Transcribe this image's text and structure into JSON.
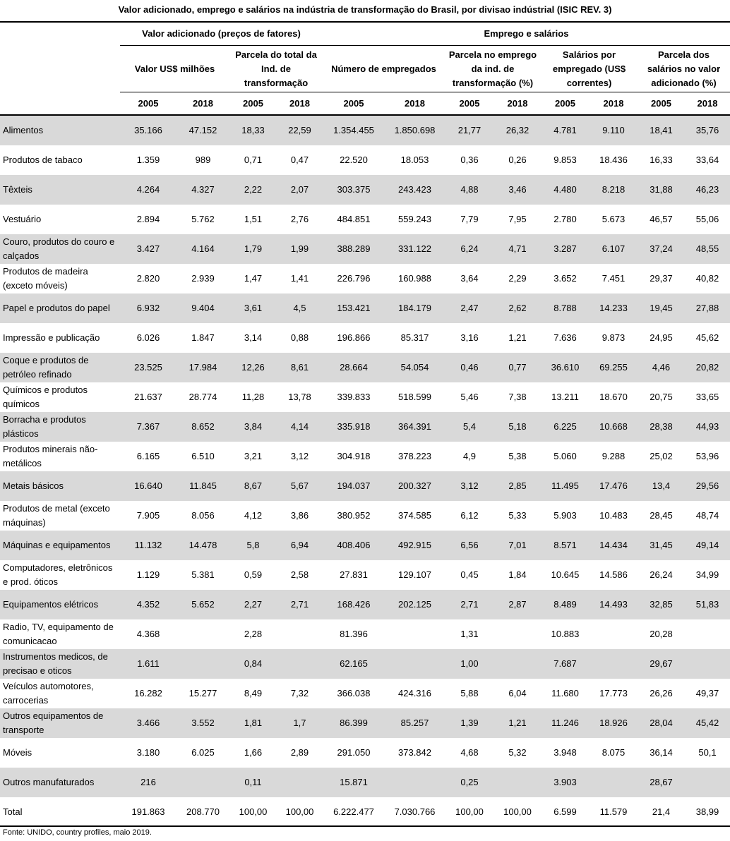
{
  "title": "Valor adicionado, emprego e salários na indústria de transformação do Brasil, por divisao indústrial (ISIC REV. 3)",
  "groups": [
    "Valor adicionado (preços de fatores)",
    "Emprego e salários"
  ],
  "subgroups": [
    "Valor US$ milhões",
    "Parcela do total da Ind. de transformação",
    "Número de empregados",
    "Parcela no emprego da ind. de transformação (%)",
    "Salários por empregado (US$ correntes)",
    "Parcela dos salários no valor adicionado (%)"
  ],
  "years": [
    "2005",
    "2018",
    "2005",
    "2018",
    "2005",
    "2018",
    "2005",
    "2018",
    "2005",
    "2018",
    "2005",
    "2018"
  ],
  "rows": [
    [
      "Alimentos",
      "35.166",
      "47.152",
      "18,33",
      "22,59",
      "1.354.455",
      "1.850.698",
      "21,77",
      "26,32",
      "4.781",
      "9.110",
      "18,41",
      "35,76"
    ],
    [
      "Produtos de tabaco",
      "1.359",
      "989",
      "0,71",
      "0,47",
      "22.520",
      "18.053",
      "0,36",
      "0,26",
      "9.853",
      "18.436",
      "16,33",
      "33,64"
    ],
    [
      "Têxteis",
      "4.264",
      "4.327",
      "2,22",
      "2,07",
      "303.375",
      "243.423",
      "4,88",
      "3,46",
      "4.480",
      "8.218",
      "31,88",
      "46,23"
    ],
    [
      "Vestuário",
      "2.894",
      "5.762",
      "1,51",
      "2,76",
      "484.851",
      "559.243",
      "7,79",
      "7,95",
      "2.780",
      "5.673",
      "46,57",
      "55,06"
    ],
    [
      "Couro, produtos do couro e calçados",
      "3.427",
      "4.164",
      "1,79",
      "1,99",
      "388.289",
      "331.122",
      "6,24",
      "4,71",
      "3.287",
      "6.107",
      "37,24",
      "48,55"
    ],
    [
      "Produtos de madeira (exceto móveis)",
      "2.820",
      "2.939",
      "1,47",
      "1,41",
      "226.796",
      "160.988",
      "3,64",
      "2,29",
      "3.652",
      "7.451",
      "29,37",
      "40,82"
    ],
    [
      "Papel e produtos do papel",
      "6.932",
      "9.404",
      "3,61",
      "4,5",
      "153.421",
      "184.179",
      "2,47",
      "2,62",
      "8.788",
      "14.233",
      "19,45",
      "27,88"
    ],
    [
      "Impressão e publicação",
      "6.026",
      "1.847",
      "3,14",
      "0,88",
      "196.866",
      "85.317",
      "3,16",
      "1,21",
      "7.636",
      "9.873",
      "24,95",
      "45,62"
    ],
    [
      "Coque e produtos de petróleo refinado",
      "23.525",
      "17.984",
      "12,26",
      "8,61",
      "28.664",
      "54.054",
      "0,46",
      "0,77",
      "36.610",
      "69.255",
      "4,46",
      "20,82"
    ],
    [
      "Químicos e produtos químicos",
      "21.637",
      "28.774",
      "11,28",
      "13,78",
      "339.833",
      "518.599",
      "5,46",
      "7,38",
      "13.211",
      "18.670",
      "20,75",
      "33,65"
    ],
    [
      "Borracha e produtos plásticos",
      "7.367",
      "8.652",
      "3,84",
      "4,14",
      "335.918",
      "364.391",
      "5,4",
      "5,18",
      "6.225",
      "10.668",
      "28,38",
      "44,93"
    ],
    [
      "Produtos minerais não-metálicos",
      "6.165",
      "6.510",
      "3,21",
      "3,12",
      "304.918",
      "378.223",
      "4,9",
      "5,38",
      "5.060",
      "9.288",
      "25,02",
      "53,96"
    ],
    [
      "Metais básicos",
      "16.640",
      "11.845",
      "8,67",
      "5,67",
      "194.037",
      "200.327",
      "3,12",
      "2,85",
      "11.495",
      "17.476",
      "13,4",
      "29,56"
    ],
    [
      "Produtos de metal (exceto máquinas)",
      "7.905",
      "8.056",
      "4,12",
      "3,86",
      "380.952",
      "374.585",
      "6,12",
      "5,33",
      "5.903",
      "10.483",
      "28,45",
      "48,74"
    ],
    [
      "Máquinas e equipamentos",
      "11.132",
      "14.478",
      "5,8",
      "6,94",
      "408.406",
      "492.915",
      "6,56",
      "7,01",
      "8.571",
      "14.434",
      "31,45",
      "49,14"
    ],
    [
      "Computadores, eletrônicos e prod. óticos",
      "1.129",
      "5.381",
      "0,59",
      "2,58",
      "27.831",
      "129.107",
      "0,45",
      "1,84",
      "10.645",
      "14.586",
      "26,24",
      "34,99"
    ],
    [
      "Equipamentos elétricos",
      "4.352",
      "5.652",
      "2,27",
      "2,71",
      "168.426",
      "202.125",
      "2,71",
      "2,87",
      "8.489",
      "14.493",
      "32,85",
      "51,83"
    ],
    [
      "Radio, TV, equipamento de comunicacao",
      "4.368",
      null,
      "2,28",
      null,
      "81.396",
      null,
      "1,31",
      null,
      "10.883",
      null,
      "20,28",
      null
    ],
    [
      "Instrumentos medicos, de precisao e oticos",
      "1.611",
      null,
      "0,84",
      null,
      "62.165",
      null,
      "1,00",
      null,
      "7.687",
      null,
      "29,67",
      null
    ],
    [
      "Veículos automotores, carrocerias",
      "16.282",
      "15.277",
      "8,49",
      "7,32",
      "366.038",
      "424.316",
      "5,88",
      "6,04",
      "11.680",
      "17.773",
      "26,26",
      "49,37"
    ],
    [
      "Outros equipamentos de transporte",
      "3.466",
      "3.552",
      "1,81",
      "1,7",
      "86.399",
      "85.257",
      "1,39",
      "1,21",
      "11.246",
      "18.926",
      "28,04",
      "45,42"
    ],
    [
      "Móveis",
      "3.180",
      "6.025",
      "1,66",
      "2,89",
      "291.050",
      "373.842",
      "4,68",
      "5,32",
      "3.948",
      "8.075",
      "36,14",
      "50,1"
    ],
    [
      "Outros manufaturados",
      "216",
      null,
      "0,11",
      null,
      "15.871",
      null,
      "0,25",
      null,
      "3.903",
      null,
      "28,67",
      null
    ],
    [
      "Total",
      "191.863",
      "208.770",
      "100,00",
      "100,00",
      "6.222.477",
      "7.030.766",
      "100,00",
      "100,00",
      "6.599",
      "11.579",
      "21,4",
      "38,99"
    ]
  ],
  "note": "Fonte: UNIDO, country profiles, maio 2019."
}
